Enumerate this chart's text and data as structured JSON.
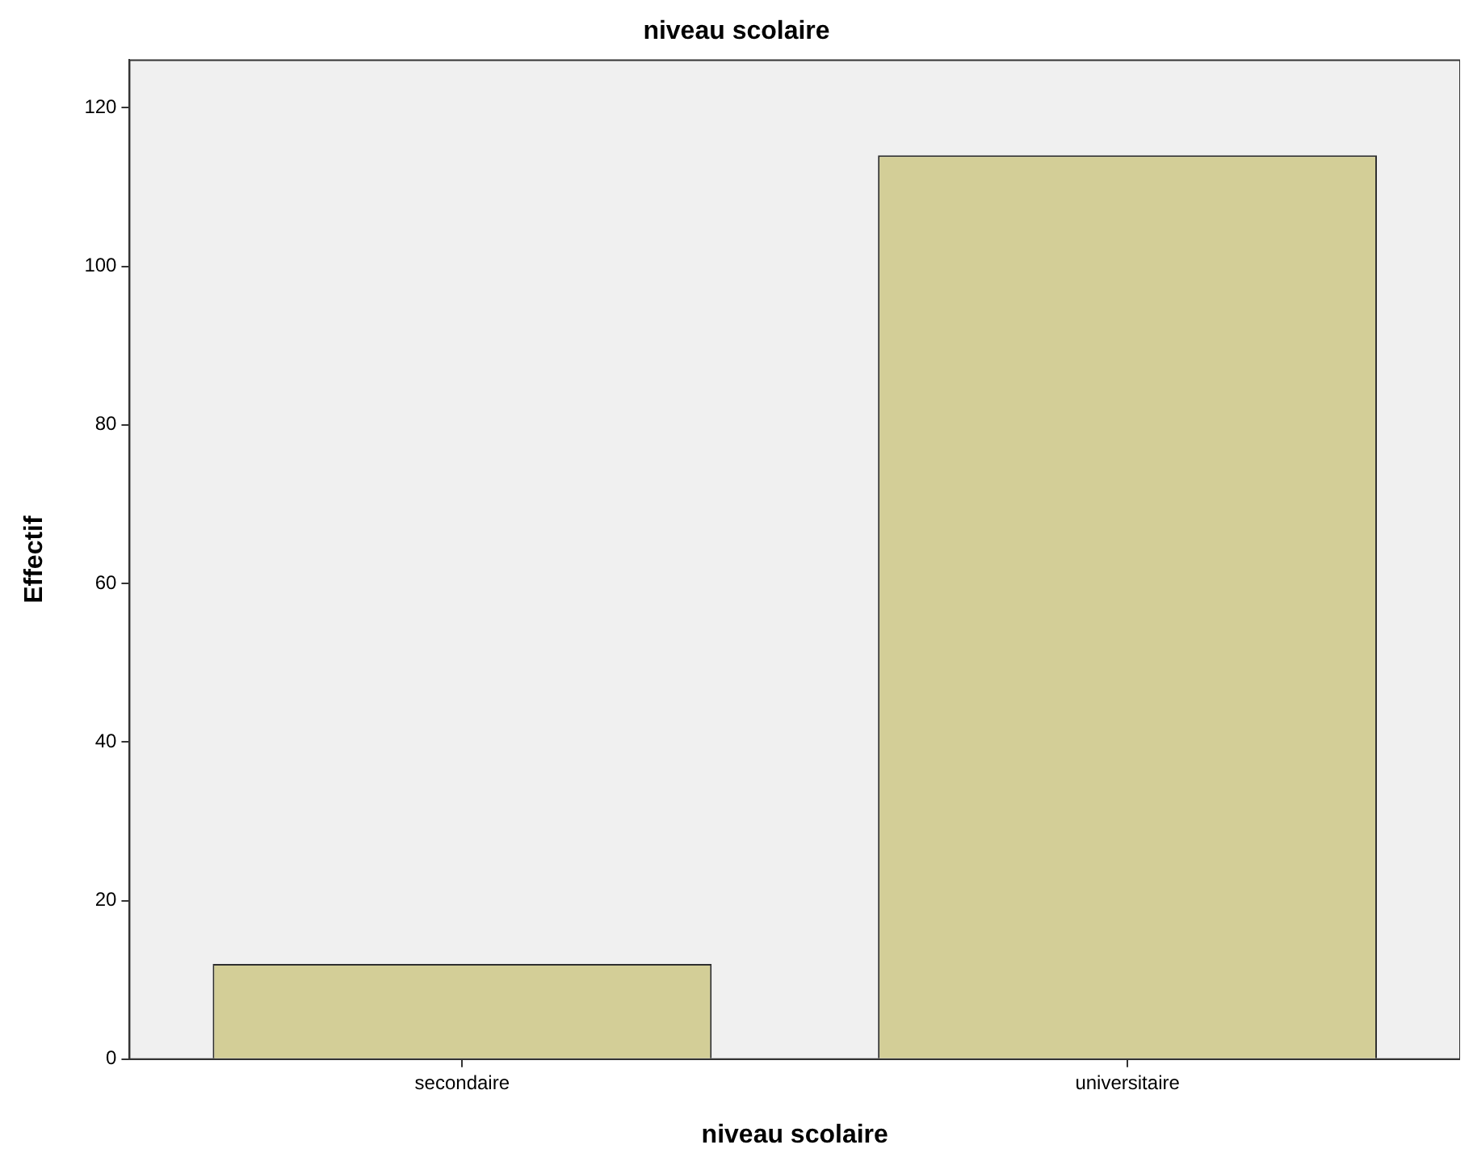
{
  "chart_data": {
    "type": "bar",
    "title": "niveau scolaire",
    "xlabel": "niveau scolaire",
    "ylabel": "Effectif",
    "categories": [
      "secondaire",
      "universitaire"
    ],
    "values": [
      12,
      114
    ],
    "color": "#d3ce97",
    "ylim": [
      0,
      126
    ],
    "yticks": [
      0,
      20,
      40,
      60,
      80,
      100,
      120
    ],
    "grid": false,
    "legend": false
  }
}
